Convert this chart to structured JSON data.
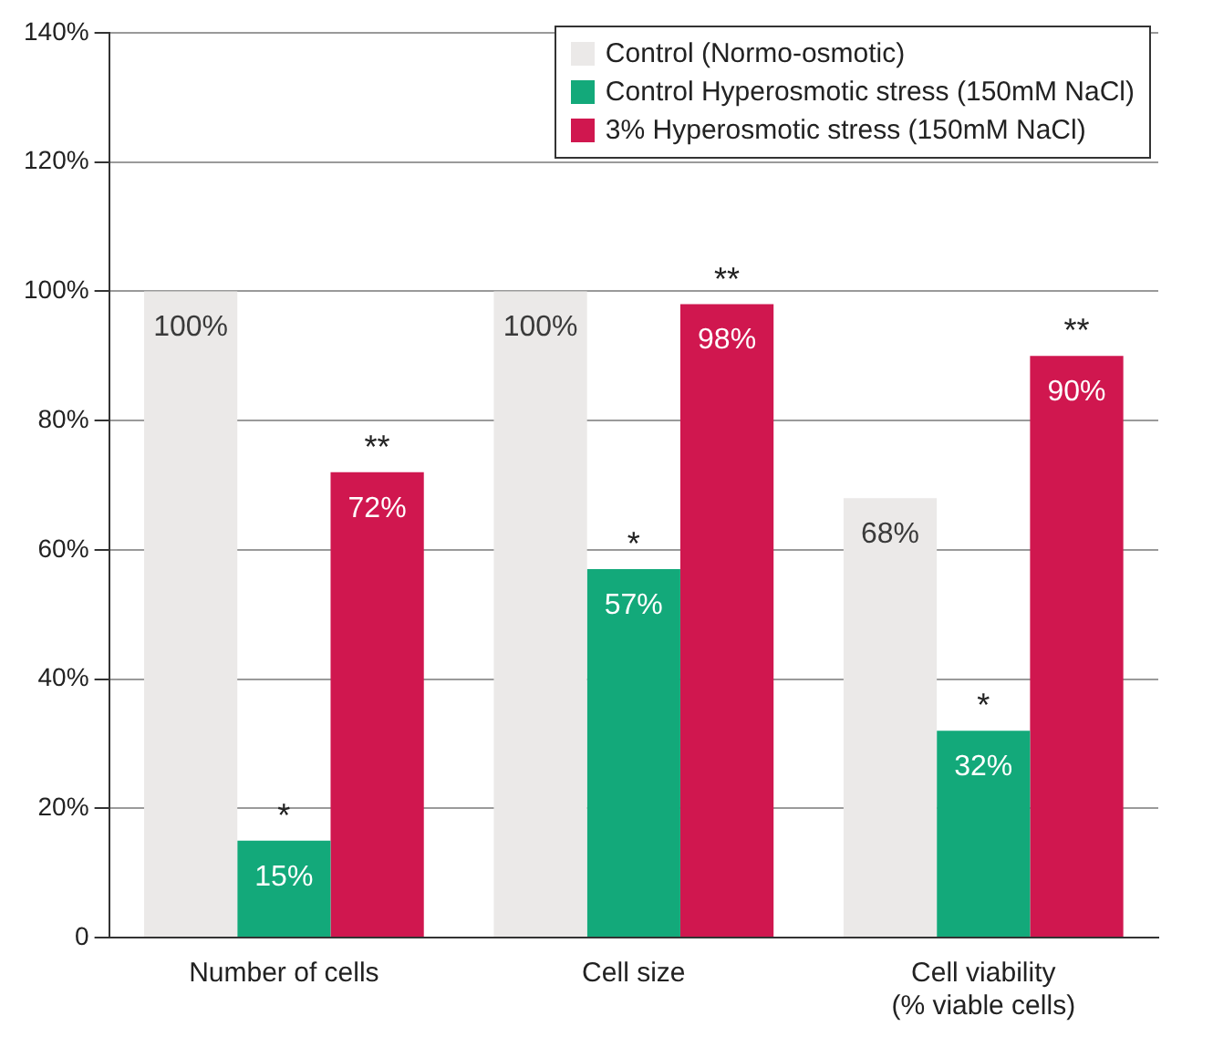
{
  "chart_data": {
    "type": "bar",
    "categories": [
      "Number of cells",
      "Cell size",
      "Cell viability\n(% viable cells)"
    ],
    "series": [
      {
        "name": "Control (Normo-osmotic)",
        "color": "#ebe9e8",
        "values": [
          100,
          100,
          68
        ],
        "value_labels": [
          "100%",
          "100%",
          "68%"
        ]
      },
      {
        "name": "Control Hyperosmotic stress (150mM NaCl)",
        "color": "#13a97a",
        "values": [
          15,
          57,
          32
        ],
        "value_labels": [
          "15%",
          "57%",
          "32%"
        ]
      },
      {
        "name": "3% Hyperosmotic stress (150mM NaCl)",
        "color": "#d0174f",
        "values": [
          72,
          98,
          90
        ],
        "value_labels": [
          "72%",
          "98%",
          "90%"
        ]
      }
    ],
    "ylim": [
      0,
      140
    ],
    "yticks": [
      {
        "value": 0,
        "label": "0"
      },
      {
        "value": 20,
        "label": "20%"
      },
      {
        "value": 40,
        "label": "40%"
      },
      {
        "value": 60,
        "label": "60%"
      },
      {
        "value": 80,
        "label": "80%"
      },
      {
        "value": 100,
        "label": "100%"
      },
      {
        "value": 120,
        "label": "120%"
      },
      {
        "value": 140,
        "label": "140%"
      }
    ],
    "grid": "y",
    "legend": "top right",
    "annotations": [
      "*",
      "**",
      "*",
      "**",
      "*",
      "**"
    ]
  }
}
